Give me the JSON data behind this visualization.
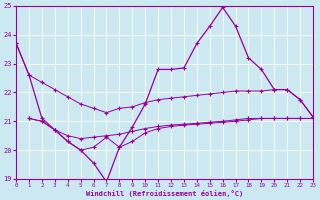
{
  "bg_color": "#cce8f0",
  "grid_color": "#ffffff",
  "line_color": "#990099",
  "xlabel": "Windchill (Refroidissement éolien,°C)",
  "ylim": [
    19,
    25
  ],
  "xlim": [
    0,
    23
  ],
  "yticks": [
    19,
    20,
    21,
    22,
    23,
    24,
    25
  ],
  "xticks": [
    0,
    1,
    2,
    3,
    4,
    5,
    6,
    7,
    8,
    9,
    10,
    11,
    12,
    13,
    14,
    15,
    16,
    17,
    18,
    19,
    20,
    21,
    22,
    23
  ],
  "line_upper_diag": {
    "x": [
      0,
      1,
      2,
      3,
      4,
      5,
      6,
      7,
      8,
      9,
      10,
      11,
      12,
      13,
      14,
      15,
      16,
      17,
      18,
      19,
      20,
      21,
      22,
      23
    ],
    "y": [
      23.7,
      22.6,
      22.35,
      22.1,
      21.85,
      21.6,
      21.45,
      21.3,
      21.45,
      21.5,
      21.65,
      21.75,
      21.8,
      21.85,
      21.9,
      21.95,
      22.0,
      22.05,
      22.05,
      22.05,
      22.1,
      22.1,
      21.75,
      21.15
    ]
  },
  "line_main_zigzag": {
    "x": [
      0,
      1,
      2,
      3,
      4,
      5,
      6,
      7,
      8,
      9,
      10,
      11,
      12,
      13,
      14,
      15,
      16,
      17,
      18,
      19,
      20,
      21,
      22,
      23
    ],
    "y": [
      23.7,
      22.6,
      21.1,
      20.7,
      20.3,
      20.0,
      19.55,
      18.9,
      20.1,
      20.8,
      21.6,
      22.8,
      22.8,
      22.85,
      23.7,
      24.3,
      24.95,
      24.3,
      23.2,
      22.8,
      22.1,
      22.1,
      21.75,
      21.15
    ]
  },
  "line_lower_flat": {
    "x": [
      1,
      2,
      3,
      4,
      5,
      6,
      7,
      8,
      9,
      10,
      11,
      12,
      13,
      14,
      15,
      16,
      17,
      18,
      19,
      20,
      21,
      22,
      23
    ],
    "y": [
      21.1,
      21.0,
      20.7,
      20.5,
      20.4,
      20.45,
      20.5,
      20.55,
      20.65,
      20.75,
      20.82,
      20.87,
      20.9,
      20.93,
      20.97,
      21.0,
      21.05,
      21.1,
      21.1,
      21.1,
      21.1,
      21.1,
      21.1
    ]
  },
  "line_bottom_zigzag": {
    "x": [
      1,
      2,
      3,
      4,
      5,
      6,
      7,
      8,
      9,
      10,
      11,
      12,
      13,
      14,
      15,
      16,
      17,
      18,
      19,
      20,
      21,
      22,
      23
    ],
    "y": [
      21.1,
      21.0,
      20.7,
      20.3,
      20.0,
      20.1,
      20.45,
      20.1,
      20.3,
      20.6,
      20.75,
      20.82,
      20.87,
      20.9,
      20.93,
      20.97,
      21.0,
      21.05,
      21.1,
      21.1,
      21.1,
      21.1,
      21.1
    ]
  }
}
